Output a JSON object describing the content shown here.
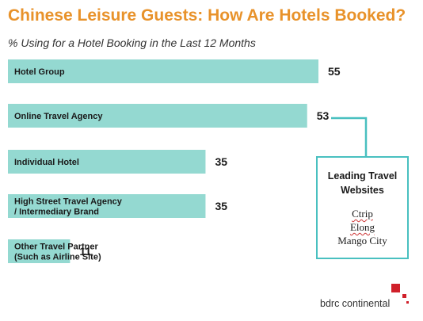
{
  "title": "Chinese Leisure Guests: How Are Hotels Booked?",
  "subtitle": "% Using for a Hotel Booking in the Last 12 Months",
  "colors": {
    "bar": "#94d9d1",
    "title": "#e8922a",
    "callout_border": "#49c0c0",
    "logo_red": "#d0202a"
  },
  "chart_data": {
    "type": "bar",
    "orientation": "horizontal",
    "categories": [
      [
        "Hotel Group"
      ],
      [
        "Online Travel Agency"
      ],
      [
        "Individual Hotel"
      ],
      [
        "High Street Travel Agency",
        "/ Intermediary Brand"
      ],
      [
        "Other Travel Partner",
        "(Such as Airline Site)"
      ]
    ],
    "values": [
      55,
      53,
      35,
      35,
      11
    ],
    "xlim": [
      0,
      55
    ],
    "grid": false
  },
  "callout": {
    "title_lines": [
      "Leading Travel",
      "Websites"
    ],
    "sites": [
      "Ctrip",
      "Elong",
      "Mango City"
    ]
  },
  "logo": {
    "text": "bdrc continental"
  }
}
